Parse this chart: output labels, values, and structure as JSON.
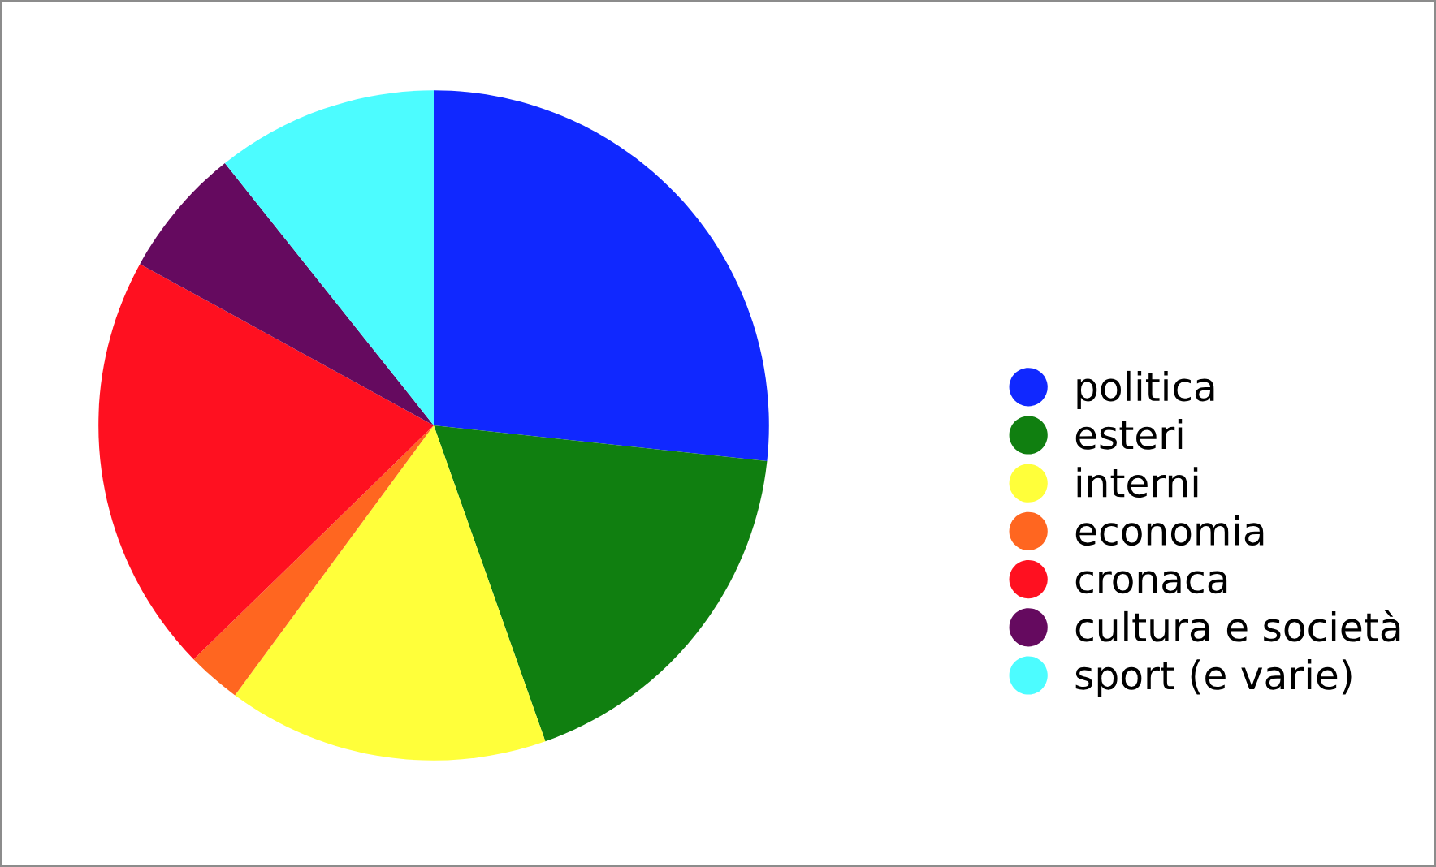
{
  "chart_data": {
    "type": "pie",
    "categories": [
      "politica",
      "esteri",
      "interni",
      "economia",
      "cronaca",
      "cultura e società",
      "sport (e varie)"
    ],
    "values": [
      26.7,
      17.9,
      15.5,
      2.6,
      20.3,
      6.3,
      10.7
    ],
    "colors": [
      "#1028ff",
      "#107f10",
      "#ffff3a",
      "#ff6620",
      "#ff1020",
      "#650a5f",
      "#4cfcff"
    ],
    "legend": "right"
  }
}
